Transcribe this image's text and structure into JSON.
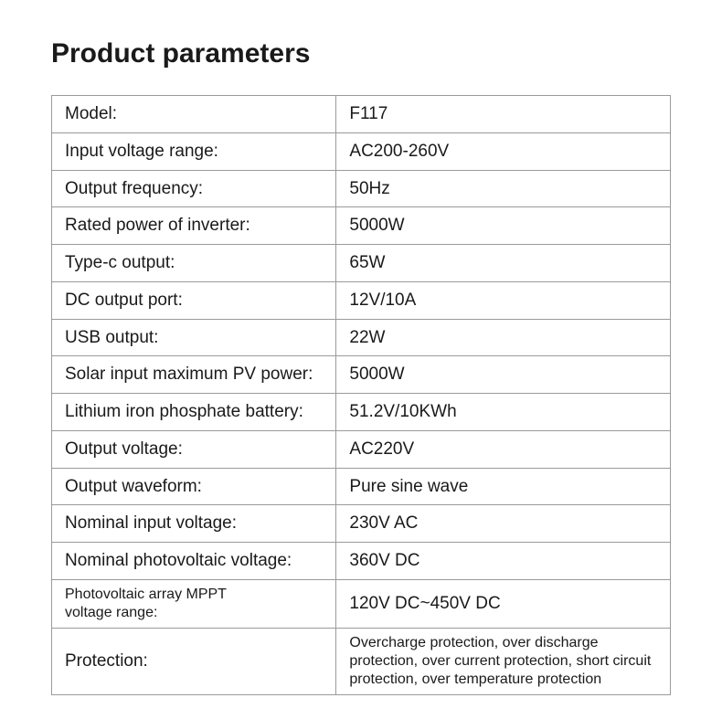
{
  "title": "Product parameters",
  "colors": {
    "text": "#1a1a1a",
    "border": "#9a9a9a",
    "background": "#ffffff"
  },
  "typography": {
    "title_fontsize": 30,
    "title_fontweight": 600,
    "cell_fontsize": 19,
    "small_cell_fontsize": 16,
    "font_family": "-apple-system, BlinkMacSystemFont, Segoe UI, Arial, sans-serif"
  },
  "table": {
    "columns": [
      {
        "role": "label",
        "width_pct": 46,
        "align": "left"
      },
      {
        "role": "value",
        "width_pct": 54,
        "align": "left"
      }
    ],
    "rows": [
      {
        "label": "Model:",
        "value": "F117"
      },
      {
        "label": "Input voltage range:",
        "value": "AC200-260V"
      },
      {
        "label": "Output frequency:",
        "value": "50Hz"
      },
      {
        "label": "Rated power of inverter:",
        "value": "5000W"
      },
      {
        "label": "Type-c output:",
        "value": "65W"
      },
      {
        "label": "DC output port:",
        "value": "12V/10A"
      },
      {
        "label": "USB output:",
        "value": "22W"
      },
      {
        "label": "Solar input maximum PV power:",
        "value": "5000W"
      },
      {
        "label": "Lithium iron phosphate battery:",
        "value": "51.2V/10KWh"
      },
      {
        "label": "Output voltage:",
        "value": "AC220V"
      },
      {
        "label": "Output waveform:",
        "value": "Pure sine wave"
      },
      {
        "label": "Nominal input voltage:",
        "value": "230V AC"
      },
      {
        "label": "Nominal photovoltaic voltage:",
        "value": "360V DC"
      },
      {
        "label": "Photovoltaic array MPPT\nvoltage range:",
        "value": "120V DC~450V DC",
        "label_small": true
      },
      {
        "label": "Protection:",
        "value": "Overcharge protection, over discharge protection, over current protection, short circuit protection, over temperature protection",
        "value_small": true
      }
    ]
  }
}
